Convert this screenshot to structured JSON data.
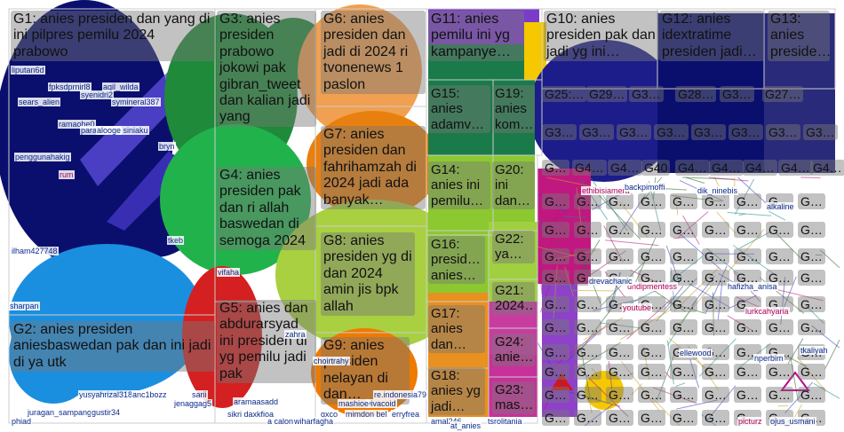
{
  "groups": [
    {
      "id": "G1",
      "label": "G1: anies presiden dan yang di ini pilpres pemilu 2024 prabowo",
      "color": "#0a0f6e"
    },
    {
      "id": "G2",
      "label": "G2: anies presiden aniesbaswedan pak dan ini jadi di ya utk",
      "color": "#1a8fe0"
    },
    {
      "id": "G3",
      "label": "G3: anies presiden prabowo jokowi pak gibran_tweet dan kalian jadi yang",
      "color": "#1f8a3a"
    },
    {
      "id": "G4",
      "label": "G4: anies presiden pak dan ri allah baswedan di semoga 2024",
      "color": "#22b24c"
    },
    {
      "id": "G5",
      "label": "G5: anies dan abdurarsyad ini presiden di yg pemilu jadi pak",
      "color": "#d42020"
    },
    {
      "id": "G6",
      "label": "G6: anies presiden dan jadi di 2024 ri tvonenews 1 paslon",
      "color": "#f0a050"
    },
    {
      "id": "G7",
      "label": "G7: anies presiden dan fahrihamzah di 2024 jadi ada banyak…",
      "color": "#e88010"
    },
    {
      "id": "G8",
      "label": "G8: anies presiden yg di dan 2024 amin jis bpk allah",
      "color": "#a8d040"
    },
    {
      "id": "G9",
      "label": "G9: anies presiden nelayan di dan…",
      "color": "#ee7a00"
    },
    {
      "id": "G10",
      "label": "G10: anies presiden pak dan jadi yg ini…",
      "color": "#1c1c8a"
    },
    {
      "id": "G11",
      "label": "G11: anies pemilu ini yg kampanye…",
      "color": "#7a3cc8"
    },
    {
      "id": "G12",
      "label": "G12: anies idextratime presiden jadi…",
      "color": "#3a3a9a"
    },
    {
      "id": "G13",
      "label": "G13: anies preside…",
      "color": "#5a5a9a"
    },
    {
      "id": "G14",
      "label": "G14: anies ini pemilu…",
      "color": "#8cc830"
    },
    {
      "id": "G15",
      "label": "G15: anies adamv…",
      "color": "#1a7a4a"
    },
    {
      "id": "G16",
      "label": "G16: presid… anies…",
      "color": "#9acc40"
    },
    {
      "id": "G17",
      "label": "G17: anies dan…",
      "color": "#e89020"
    },
    {
      "id": "G18",
      "label": "G18: anies yg jadi…",
      "color": "#f0c060"
    },
    {
      "id": "G19",
      "label": "G19: anies kom…",
      "color": "#7ab830"
    },
    {
      "id": "G20",
      "label": "G20: ini dan…",
      "color": "#a0d040"
    },
    {
      "id": "G21",
      "label": "G21: 2024…",
      "color": "#c83ca0"
    },
    {
      "id": "G22",
      "label": "G22: ya…",
      "color": "#e0a030"
    },
    {
      "id": "G23",
      "label": "G23: mas…",
      "color": "#d8b040"
    },
    {
      "id": "G24",
      "label": "G24: anie…",
      "color": "#c8309a"
    }
  ],
  "small_labels": [
    "G25:…",
    "G29…",
    "G3…",
    "G28…",
    "G3…",
    "G27…",
    "G3…",
    "G3…",
    "G3…",
    "G3…",
    "G3…",
    "G3…",
    "G3…",
    "G3…",
    "G…",
    "G4…",
    "G4…",
    "G40",
    "G4…",
    "G4…",
    "G4…",
    "G4…",
    "G4…"
  ],
  "tiny_g": "G…",
  "nodes": [
    "liputan6d",
    "fpksdprnirl8",
    "aqil_wilda",
    "syenidri2",
    "symineral387",
    "sears_alien",
    "ramaohe0",
    "paralooges",
    "alooge siniaku",
    "penggunahakig",
    "ilham427748",
    "sharpan",
    "tkeb",
    "vifaha",
    "zahra",
    "yusyahrizal3183",
    "anc1bozz",
    "jenaggag5",
    "juragan_sampang",
    "gustir34",
    "phiad",
    "sarii",
    "aramaasadd",
    "sikri daxkfioa",
    "gxco",
    "mimdon bel",
    "erryfrea",
    "choirtrahy",
    "re.indonesia79",
    "vivacoid",
    "mashioe",
    "a calon",
    "wiharfagha",
    "amal246",
    "at_anies",
    "tsrolitania",
    "undipmentess",
    "hafizha_anisa",
    "alkaline",
    "youtube",
    "ellewood",
    "nperbim",
    "picturz",
    "ojus_usmani",
    "drevachanic",
    "ethibisiamera",
    "dik_ninebis",
    "backpimoffi",
    "lurkcahyaria",
    "tkaliyah",
    "bryn",
    "rum"
  ]
}
